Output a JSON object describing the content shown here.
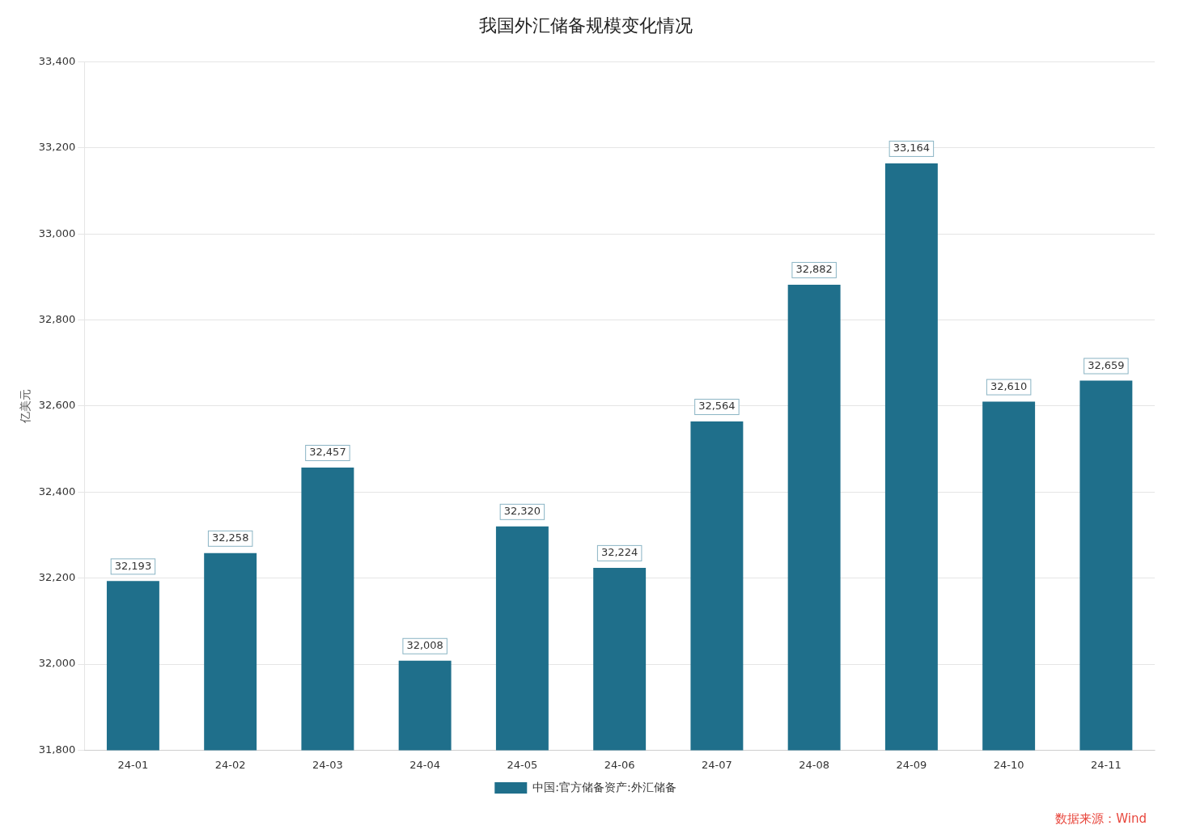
{
  "chart_data": {
    "type": "bar",
    "title": "我国外汇储备规模变化情况",
    "ylabel": "亿美元",
    "categories": [
      "24-01",
      "24-02",
      "24-03",
      "24-04",
      "24-05",
      "24-06",
      "24-07",
      "24-08",
      "24-09",
      "24-10",
      "24-11"
    ],
    "series": [
      {
        "name": "中国:官方储备资产:外汇储备",
        "color": "#1F6F8B",
        "values": [
          32193,
          32258,
          32457,
          32008,
          32320,
          32224,
          32564,
          32882,
          33164,
          32610,
          32659
        ],
        "value_labels": [
          "32,193",
          "32,258",
          "32,457",
          "32,008",
          "32,320",
          "32,224",
          "32,564",
          "32,882",
          "33,164",
          "32,610",
          "32,659"
        ]
      }
    ],
    "ylim": [
      31800,
      33400
    ],
    "yticks": [
      {
        "value": 31800,
        "label": "31,800"
      },
      {
        "value": 32000,
        "label": "32,000"
      },
      {
        "value": 32200,
        "label": "32,200"
      },
      {
        "value": 32400,
        "label": "32,400"
      },
      {
        "value": 32600,
        "label": "32,600"
      },
      {
        "value": 32800,
        "label": "32,800"
      },
      {
        "value": 33000,
        "label": "33,000"
      },
      {
        "value": 33200,
        "label": "33,200"
      },
      {
        "value": 33400,
        "label": "33,400"
      }
    ],
    "grid": true,
    "legend": "bottom",
    "data_labels": true,
    "annotations": [
      {
        "text": "数据来源：Wind",
        "color": "#E8463C"
      }
    ]
  }
}
